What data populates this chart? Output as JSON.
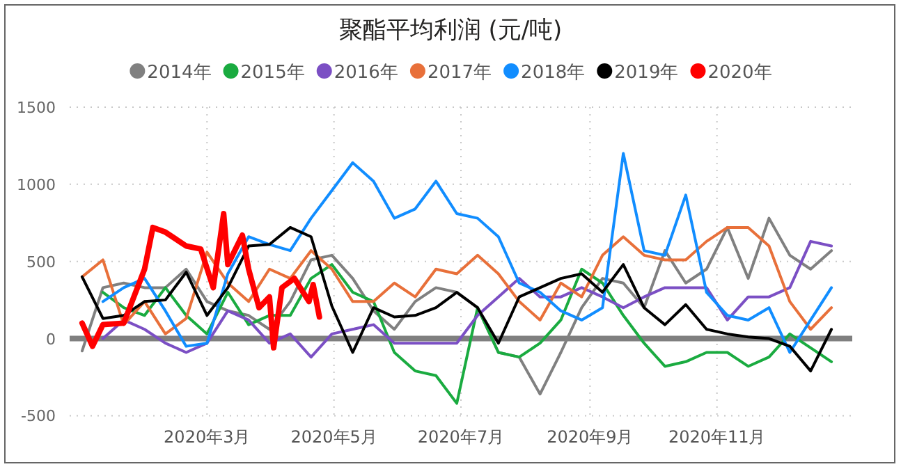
{
  "chart_data": {
    "type": "line",
    "title": "聚酯平均利润 (元/吨)",
    "x": [
      "2020-01-01",
      "2020-01-11",
      "2020-01-21",
      "2020-01-31",
      "2020-02-10",
      "2020-02-20",
      "2020-03-01",
      "2020-03-11",
      "2020-03-21",
      "2020-03-31",
      "2020-04-10",
      "2020-04-20",
      "2020-04-30",
      "2020-05-10",
      "2020-05-20",
      "2020-05-30",
      "2020-06-09",
      "2020-06-19",
      "2020-06-29",
      "2020-07-09",
      "2020-07-19",
      "2020-07-29",
      "2020-08-08",
      "2020-08-18",
      "2020-08-28",
      "2020-09-07",
      "2020-09-17",
      "2020-09-27",
      "2020-10-07",
      "2020-10-17",
      "2020-10-27",
      "2020-11-06",
      "2020-11-16",
      "2020-11-26",
      "2020-12-06",
      "2020-12-16",
      "2020-12-26"
    ],
    "series": [
      {
        "name": "2014年",
        "color": "#808080",
        "values": [
          -80,
          330,
          360,
          330,
          330,
          450,
          240,
          180,
          150,
          60,
          240,
          510,
          540,
          390,
          180,
          60,
          240,
          330,
          300,
          200,
          -90,
          -120,
          -360,
          -90,
          200,
          390,
          360,
          200,
          570,
          360,
          450,
          720,
          390,
          780,
          540,
          450,
          570
        ]
      },
      {
        "name": "2015年",
        "color": "#1aab40",
        "values": [
          null,
          300,
          200,
          150,
          330,
          150,
          30,
          300,
          90,
          150,
          150,
          390,
          480,
          300,
          240,
          -90,
          -210,
          -240,
          -420,
          200,
          -90,
          -120,
          -30,
          120,
          450,
          360,
          150,
          -30,
          -180,
          -150,
          -90,
          -90,
          -180,
          -120,
          30,
          -60,
          -150
        ]
      },
      {
        "name": "2016年",
        "color": "#7b4fc4",
        "values": [
          null,
          0,
          120,
          60,
          -30,
          -90,
          -30,
          180,
          120,
          -30,
          30,
          -120,
          30,
          60,
          90,
          -30,
          -30,
          -30,
          -30,
          150,
          270,
          390,
          270,
          270,
          330,
          270,
          200,
          270,
          330,
          330,
          330,
          120,
          270,
          270,
          330,
          630,
          600
        ]
      },
      {
        "name": "2017年",
        "color": "#e8703a",
        "values": [
          400,
          510,
          90,
          240,
          30,
          130,
          560,
          360,
          240,
          450,
          390,
          570,
          450,
          240,
          240,
          360,
          270,
          450,
          420,
          540,
          420,
          240,
          120,
          360,
          270,
          540,
          660,
          540,
          510,
          510,
          630,
          720,
          720,
          600,
          240,
          60,
          200
        ]
      },
      {
        "name": "2018年",
        "color": "#118dff",
        "values": [
          null,
          240,
          330,
          390,
          180,
          -50,
          -30,
          420,
          660,
          610,
          570,
          780,
          960,
          1140,
          1020,
          780,
          840,
          1020,
          810,
          780,
          660,
          360,
          300,
          180,
          120,
          200,
          1200,
          570,
          540,
          930,
          300,
          150,
          120,
          200,
          -90,
          120,
          330
        ]
      },
      {
        "name": "2019年",
        "color": "#000000",
        "values": [
          400,
          130,
          150,
          240,
          250,
          430,
          150,
          330,
          600,
          610,
          720,
          660,
          210,
          -90,
          200,
          140,
          150,
          200,
          300,
          200,
          -30,
          270,
          330,
          390,
          420,
          300,
          480,
          200,
          90,
          220,
          60,
          30,
          10,
          0,
          -50,
          -210,
          60
        ]
      },
      {
        "name": "2020年",
        "color": "#ff0000",
        "x": [
          "2020-01-01",
          "2020-01-06",
          "2020-01-11",
          "2020-01-21",
          "2020-01-31",
          "2020-02-04",
          "2020-02-10",
          "2020-02-20",
          "2020-02-27",
          "2020-03-04",
          "2020-03-09",
          "2020-03-11",
          "2020-03-18",
          "2020-03-21",
          "2020-03-26",
          "2020-03-31",
          "2020-04-02",
          "2020-04-06",
          "2020-04-12",
          "2020-04-19",
          "2020-04-21",
          "2020-04-24"
        ],
        "values": [
          100,
          -50,
          90,
          100,
          450,
          720,
          690,
          600,
          580,
          330,
          810,
          480,
          670,
          450,
          200,
          270,
          -60,
          330,
          390,
          240,
          350,
          140
        ]
      }
    ],
    "xlim": [
      "2019-12-26",
      "2021-01-05"
    ],
    "xticks": [
      {
        "value": "2020-03-01",
        "label": "2020年3月"
      },
      {
        "value": "2020-05-01",
        "label": "2020年5月"
      },
      {
        "value": "2020-07-01",
        "label": "2020年7月"
      },
      {
        "value": "2020-09-01",
        "label": "2020年9月"
      },
      {
        "value": "2020-11-01",
        "label": "2020年11月"
      }
    ],
    "ylim": [
      -500,
      1500
    ],
    "yticks": [
      -500,
      0,
      500,
      1000,
      1500
    ],
    "ref_lines": [
      {
        "axis": "y",
        "value": 0,
        "color": "#7f7f7f"
      }
    ],
    "grid": true,
    "legend": "top"
  }
}
